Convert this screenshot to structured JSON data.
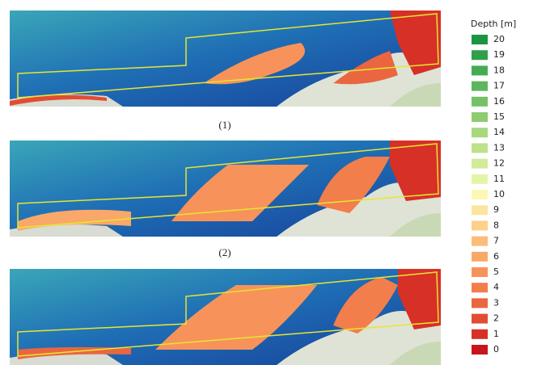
{
  "panels": [
    {
      "label": "(1)"
    },
    {
      "label": "(2)"
    },
    {}
  ],
  "legend": {
    "title": "Depth [m]",
    "items": [
      {
        "label": "20",
        "color": "#1a9641"
      },
      {
        "label": "19",
        "color": "#2fa04a"
      },
      {
        "label": "18",
        "color": "#45ab53"
      },
      {
        "label": "17",
        "color": "#5bb65d"
      },
      {
        "label": "16",
        "color": "#74c166"
      },
      {
        "label": "15",
        "color": "#8ecc70"
      },
      {
        "label": "14",
        "color": "#a6d87c"
      },
      {
        "label": "13",
        "color": "#bde28a"
      },
      {
        "label": "12",
        "color": "#d2eb98"
      },
      {
        "label": "11",
        "color": "#e6f4a8"
      },
      {
        "label": "10",
        "color": "#fbf8b6"
      },
      {
        "label": "9",
        "color": "#fde4a0"
      },
      {
        "label": "8",
        "color": "#fdd08c"
      },
      {
        "label": "7",
        "color": "#fcbd7a"
      },
      {
        "label": "6",
        "color": "#faa869"
      },
      {
        "label": "5",
        "color": "#f7935a"
      },
      {
        "label": "4",
        "color": "#f27e4c"
      },
      {
        "label": "3",
        "color": "#ea6640"
      },
      {
        "label": "2",
        "color": "#e14d33"
      },
      {
        "label": "1",
        "color": "#d73027"
      },
      {
        "label": "0",
        "color": "#c8141c"
      }
    ]
  }
}
